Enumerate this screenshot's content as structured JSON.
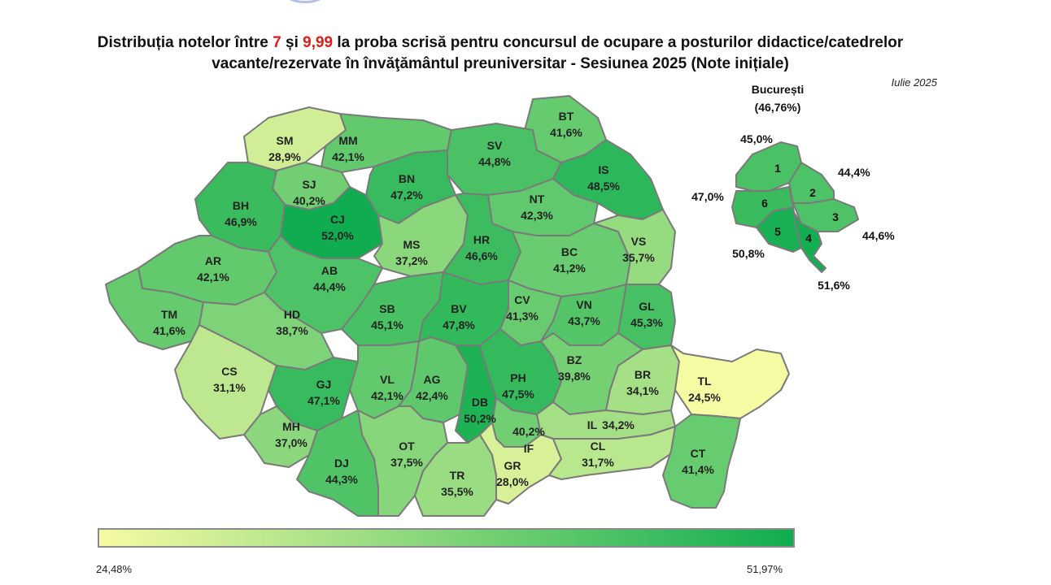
{
  "title": {
    "part1": "Distribuția notelor între",
    "v1": "7",
    "and": "și",
    "v2": "9,99",
    "part2": "la proba scrisă pentru concursul de ocupare a posturilor didactice/catedrelor",
    "line2": "vacante/rezervate în învăţământul preuniversitar - Sesiunea 2025 (Note inițiale)"
  },
  "date": "Iulie 2025",
  "colors": {
    "accent_red": "#e41b1b",
    "scale_min": "#f5fba3",
    "scale_max": "#0fad4f",
    "border": "#7a7a7a"
  },
  "counties": [
    {
      "code": "SM",
      "value": "28,9%",
      "pct": 28.9
    },
    {
      "code": "MM",
      "value": "42,1%",
      "pct": 42.1
    },
    {
      "code": "BT",
      "value": "41,6%",
      "pct": 41.6
    },
    {
      "code": "SV",
      "value": "44,8%",
      "pct": 44.8
    },
    {
      "code": "SJ",
      "value": "40,2%",
      "pct": 40.2
    },
    {
      "code": "BN",
      "value": "47,2%",
      "pct": 47.2
    },
    {
      "code": "IS",
      "value": "48,5%",
      "pct": 48.5
    },
    {
      "code": "BH",
      "value": "46,9%",
      "pct": 46.9
    },
    {
      "code": "CJ",
      "value": "52,0%",
      "pct": 52.0
    },
    {
      "code": "NT",
      "value": "42,3%",
      "pct": 42.3
    },
    {
      "code": "MS",
      "value": "37,2%",
      "pct": 37.2
    },
    {
      "code": "HR",
      "value": "46,6%",
      "pct": 46.6
    },
    {
      "code": "BC",
      "value": "41,2%",
      "pct": 41.2
    },
    {
      "code": "VS",
      "value": "35,7%",
      "pct": 35.7
    },
    {
      "code": "AR",
      "value": "42,1%",
      "pct": 42.1
    },
    {
      "code": "AB",
      "value": "44,4%",
      "pct": 44.4
    },
    {
      "code": "TM",
      "value": "41,6%",
      "pct": 41.6
    },
    {
      "code": "HD",
      "value": "38,7%",
      "pct": 38.7
    },
    {
      "code": "SB",
      "value": "45,1%",
      "pct": 45.1
    },
    {
      "code": "BV",
      "value": "47,8%",
      "pct": 47.8
    },
    {
      "code": "CV",
      "value": "41,3%",
      "pct": 41.3
    },
    {
      "code": "VN",
      "value": "43,7%",
      "pct": 43.7
    },
    {
      "code": "GL",
      "value": "45,3%",
      "pct": 45.3
    },
    {
      "code": "CS",
      "value": "31,1%",
      "pct": 31.1
    },
    {
      "code": "GJ",
      "value": "47,1%",
      "pct": 47.1
    },
    {
      "code": "VL",
      "value": "42,1%",
      "pct": 42.1
    },
    {
      "code": "AG",
      "value": "42,4%",
      "pct": 42.4
    },
    {
      "code": "PH",
      "value": "47,5%",
      "pct": 47.5
    },
    {
      "code": "BZ",
      "value": "39,8%",
      "pct": 39.8
    },
    {
      "code": "BR",
      "value": "34,1%",
      "pct": 34.1
    },
    {
      "code": "TL",
      "value": "24,5%",
      "pct": 24.5
    },
    {
      "code": "DB",
      "value": "50,2%",
      "pct": 50.2
    },
    {
      "code": "MH",
      "value": "37,0%",
      "pct": 37.0
    },
    {
      "code": "IF",
      "value": "40,2%",
      "pct": 40.2
    },
    {
      "code": "IL",
      "value": "34,2%",
      "pct": 34.2
    },
    {
      "code": "OT",
      "value": "37,5%",
      "pct": 37.5
    },
    {
      "code": "DJ",
      "value": "44,3%",
      "pct": 44.3
    },
    {
      "code": "TR",
      "value": "35,5%",
      "pct": 35.5
    },
    {
      "code": "GR",
      "value": "28,0%",
      "pct": 28.0
    },
    {
      "code": "CL",
      "value": "31,7%",
      "pct": 31.7
    },
    {
      "code": "CT",
      "value": "41,4%",
      "pct": 41.4
    }
  ],
  "bucharest": {
    "title": "București",
    "total": "(46,76%)",
    "sectors": [
      {
        "num": "1",
        "value": "45,0%",
        "pct": 45.0
      },
      {
        "num": "2",
        "value": "44,4%",
        "pct": 44.4
      },
      {
        "num": "3",
        "value": "44,6%",
        "pct": 44.6
      },
      {
        "num": "4",
        "value": "51,6%",
        "pct": 51.6
      },
      {
        "num": "5",
        "value": "50,8%",
        "pct": 50.8
      },
      {
        "num": "6",
        "value": "47,0%",
        "pct": 47.0
      }
    ]
  },
  "legend": {
    "min_label": "24,48%",
    "max_label": "51,97%",
    "min": 24.48,
    "max": 51.97
  }
}
